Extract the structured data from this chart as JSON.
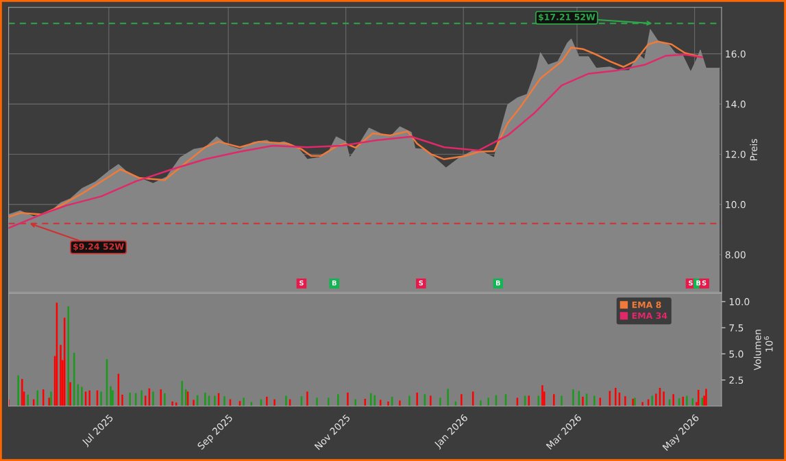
{
  "chart_data": [
    {
      "type": "area",
      "ylabel": "Preis",
      "xlim": [
        "2025-05-10",
        "2026-05-15"
      ],
      "ylim": [
        6.5,
        17.85
      ],
      "grid": true,
      "tick_labels": "y",
      "legend": "bottom right",
      "xticks": [
        {
          "value": "2025-07-01",
          "label": null
        },
        {
          "value": "2025-09-01",
          "label": null
        },
        {
          "value": "2025-11-01",
          "label": null
        },
        {
          "value": "2026-01-01",
          "label": null
        },
        {
          "value": "2026-03-01",
          "label": null
        },
        {
          "value": "2026-05-01",
          "label": null
        }
      ],
      "yticks": [
        {
          "value": 8,
          "label": "8.00"
        },
        {
          "value": 10,
          "label": "10.0"
        },
        {
          "value": 12,
          "label": "12.0"
        },
        {
          "value": 14,
          "label": "14.0"
        },
        {
          "value": 16,
          "label": "16.0"
        }
      ],
      "series": [
        {
          "type": "area",
          "color": "#858585",
          "x": [
            "2025-05-10",
            "2025-05-16",
            "2025-05-23",
            "2025-06-01",
            "2025-06-06",
            "2025-06-11",
            "2025-06-17",
            "2025-06-24",
            "2025-07-01",
            "2025-07-06",
            "2025-07-10",
            "2025-07-17",
            "2025-07-24",
            "2025-07-31",
            "2025-08-07",
            "2025-08-14",
            "2025-08-20",
            "2025-08-26",
            "2025-09-01",
            "2025-09-07",
            "2025-09-14",
            "2025-09-21",
            "2025-09-24",
            "2025-09-30",
            "2025-10-07",
            "2025-10-12",
            "2025-10-18",
            "2025-10-23",
            "2025-10-27",
            "2025-11-01",
            "2025-11-03",
            "2025-11-08",
            "2025-11-13",
            "2025-11-19",
            "2025-11-24",
            "2025-11-29",
            "2025-12-05",
            "2025-12-07",
            "2025-12-12",
            "2025-12-17",
            "2025-12-23",
            "2025-12-30",
            "2026-01-06",
            "2026-01-11",
            "2026-01-17",
            "2026-01-19",
            "2026-01-24",
            "2026-01-29",
            "2026-02-03",
            "2026-02-08",
            "2026-02-10",
            "2026-02-14",
            "2026-02-19",
            "2026-02-24",
            "2026-02-26",
            "2026-03-02",
            "2026-03-07",
            "2026-03-11",
            "2026-03-18",
            "2026-03-23",
            "2026-03-28",
            "2026-04-02",
            "2026-04-05",
            "2026-04-08",
            "2026-04-12",
            "2026-04-18",
            "2026-04-21",
            "2026-04-25",
            "2026-04-29",
            "2026-05-02",
            "2026-05-04",
            "2026-05-07",
            "2026-05-14"
          ],
          "values": [
            9.6,
            9.75,
            9.52,
            9.74,
            10.07,
            10.23,
            10.64,
            10.9,
            11.33,
            11.6,
            11.33,
            11.05,
            10.84,
            11.1,
            11.87,
            12.2,
            12.28,
            12.7,
            12.34,
            12.2,
            12.48,
            12.56,
            12.42,
            12.5,
            12.28,
            11.8,
            11.87,
            12.1,
            12.7,
            12.5,
            11.87,
            12.42,
            13.05,
            12.83,
            12.7,
            13.1,
            12.88,
            12.23,
            12.2,
            11.87,
            11.46,
            11.87,
            12.15,
            12.1,
            11.87,
            12.6,
            13.98,
            14.25,
            14.39,
            15.43,
            16.05,
            15.56,
            15.7,
            16.44,
            16.6,
            15.89,
            15.89,
            15.43,
            15.48,
            15.34,
            15.34,
            15.97,
            15.78,
            16.98,
            16.52,
            16.33,
            16.03,
            15.92,
            15.29,
            15.78,
            16.16,
            15.43,
            15.43
          ]
        },
        {
          "type": "line",
          "name": "EMA 8",
          "color": "#f07a3a",
          "x": [
            "2025-05-10",
            "2025-05-16",
            "2025-05-27",
            "2025-06-03",
            "2025-06-17",
            "2025-07-01",
            "2025-07-07",
            "2025-07-17",
            "2025-07-30",
            "2025-08-09",
            "2025-08-20",
            "2025-08-27",
            "2025-09-07",
            "2025-09-17",
            "2025-10-02",
            "2025-10-09",
            "2025-10-14",
            "2025-10-19",
            "2025-10-27",
            "2025-11-01",
            "2025-11-06",
            "2025-11-15",
            "2025-11-24",
            "2025-12-03",
            "2025-12-08",
            "2025-12-15",
            "2025-12-22",
            "2026-01-02",
            "2026-01-09",
            "2026-01-17",
            "2026-01-24",
            "2026-01-31",
            "2026-02-10",
            "2026-02-21",
            "2026-02-26",
            "2026-03-04",
            "2026-03-11",
            "2026-03-18",
            "2026-03-25",
            "2026-03-31",
            "2026-04-07",
            "2026-04-12",
            "2026-04-19",
            "2026-04-26",
            "2026-05-05"
          ],
          "values": [
            9.5,
            9.66,
            9.6,
            9.83,
            10.43,
            11.1,
            11.4,
            11.05,
            10.97,
            11.6,
            12.28,
            12.5,
            12.28,
            12.5,
            12.42,
            12.2,
            11.93,
            11.93,
            12.31,
            12.42,
            12.26,
            12.83,
            12.75,
            12.91,
            12.42,
            12.01,
            11.8,
            11.93,
            12.1,
            12.12,
            13.24,
            13.92,
            15.02,
            15.7,
            16.25,
            16.19,
            15.97,
            15.7,
            15.48,
            15.7,
            16.38,
            16.49,
            16.38,
            16.03,
            15.86
          ]
        },
        {
          "type": "line",
          "name": "EMA 34",
          "color": "#e0286a",
          "x": [
            "2025-05-10",
            "2025-05-27",
            "2025-06-09",
            "2025-06-27",
            "2025-07-15",
            "2025-08-02",
            "2025-08-20",
            "2025-09-07",
            "2025-09-24",
            "2025-10-12",
            "2025-10-30",
            "2025-11-17",
            "2025-12-05",
            "2025-12-22",
            "2026-01-09",
            "2026-01-24",
            "2026-02-07",
            "2026-02-21",
            "2026-03-07",
            "2026-03-22",
            "2026-04-05",
            "2026-04-16",
            "2026-04-26",
            "2026-05-05"
          ],
          "values": [
            9.06,
            9.6,
            9.96,
            10.32,
            10.92,
            11.38,
            11.8,
            12.1,
            12.34,
            12.28,
            12.34,
            12.56,
            12.7,
            12.28,
            12.15,
            12.75,
            13.65,
            14.74,
            15.21,
            15.34,
            15.56,
            15.92,
            15.97,
            15.86
          ]
        },
        {
          "type": "scatter",
          "marker": "square",
          "x": [
            "2025-10-09",
            "2025-10-26",
            "2025-12-10",
            "2026-01-19",
            "2026-04-29",
            "2026-05-03",
            "2026-05-06"
          ],
          "values": [
            6.85,
            6.85,
            6.85,
            6.85,
            6.85,
            6.85,
            6.85
          ],
          "colors": [
            "#e8194a",
            "#13b552",
            "#e8194a",
            "#13b552",
            "#e8194a",
            "#13b552",
            "#e8194a"
          ],
          "value_labels": [
            "S",
            "B",
            "S",
            "B",
            "S",
            "B",
            "S"
          ]
        }
      ],
      "ref_lines": [
        {
          "axis": "y",
          "value": 17.21,
          "color": "#2ea84a",
          "line_style": "dashed"
        },
        {
          "axis": "y",
          "value": 9.24,
          "color": "#d03030",
          "line_style": "dashed"
        }
      ],
      "annotations": [
        {
          "text": "$17.21 52W",
          "x": "2026-04-09",
          "y": 17.21
        },
        {
          "text": "$9.24 52W",
          "x": "2025-05-21",
          "y": 9.24
        }
      ]
    },
    {
      "type": "bar",
      "ylabel": "Volumen",
      "annotations": [
        "10$^{6}$"
      ],
      "xlim": [
        "2025-05-10",
        "2026-05-15"
      ],
      "ylim": [
        0,
        10.8
      ],
      "grid": false,
      "xticks": [
        {
          "value": "2025-07-01",
          "label": "Jul 2025"
        },
        {
          "value": "2025-09-01",
          "label": "Sep 2025"
        },
        {
          "value": "2025-11-01",
          "label": "Nov 2025"
        },
        {
          "value": "2026-01-01",
          "label": "Jan 2026"
        },
        {
          "value": "2026-03-01",
          "label": "Mar 2026"
        },
        {
          "value": "2026-05-01",
          "label": "May 2026"
        }
      ],
      "yticks": [
        {
          "value": 2.5,
          "label": "2.5"
        },
        {
          "value": 5,
          "label": "5.0"
        },
        {
          "value": 7.5,
          "label": "7.5"
        },
        {
          "value": 10,
          "label": "10.0"
        }
      ],
      "x": [
        "2025-05-10",
        "2025-05-15",
        "2025-05-17",
        "2025-05-18",
        "2025-05-20",
        "2025-05-23",
        "2025-05-25",
        "2025-05-28",
        "2025-05-31",
        "2025-06-01",
        "2025-06-03",
        "2025-06-04",
        "2025-06-06",
        "2025-06-07",
        "2025-06-08",
        "2025-06-10",
        "2025-06-11",
        "2025-06-13",
        "2025-06-15",
        "2025-06-17",
        "2025-06-19",
        "2025-06-21",
        "2025-06-25",
        "2025-06-27",
        "2025-06-30",
        "2025-07-02",
        "2025-07-03",
        "2025-07-06",
        "2025-07-08",
        "2025-07-12",
        "2025-07-15",
        "2025-07-18",
        "2025-07-20",
        "2025-07-22",
        "2025-07-24",
        "2025-07-28",
        "2025-07-30",
        "2025-08-03",
        "2025-08-05",
        "2025-08-08",
        "2025-08-10",
        "2025-08-11",
        "2025-08-14",
        "2025-08-16",
        "2025-08-20",
        "2025-08-22",
        "2025-08-25",
        "2025-08-27",
        "2025-08-30",
        "2025-09-02",
        "2025-09-07",
        "2025-09-09",
        "2025-09-13",
        "2025-09-18",
        "2025-09-21",
        "2025-09-25",
        "2025-10-01",
        "2025-10-03",
        "2025-10-09",
        "2025-10-12",
        "2025-10-17",
        "2025-10-23",
        "2025-10-28",
        "2025-11-02",
        "2025-11-06",
        "2025-11-11",
        "2025-11-14",
        "2025-11-16",
        "2025-11-19",
        "2025-11-23",
        "2025-11-25",
        "2025-11-29",
        "2025-12-04",
        "2025-12-08",
        "2025-12-12",
        "2025-12-15",
        "2025-12-20",
        "2025-12-24",
        "2025-12-28",
        "2025-12-31",
        "2026-01-06",
        "2026-01-10",
        "2026-01-14",
        "2026-01-18",
        "2026-01-23",
        "2026-01-29",
        "2026-02-02",
        "2026-02-04",
        "2026-02-09",
        "2026-02-11",
        "2026-02-12",
        "2026-02-17",
        "2026-02-21",
        "2026-02-27",
        "2026-03-02",
        "2026-03-04",
        "2026-03-06",
        "2026-03-10",
        "2026-03-13",
        "2026-03-18",
        "2026-03-21",
        "2026-03-23",
        "2026-03-26",
        "2026-03-30",
        "2026-03-31",
        "2026-04-04",
        "2026-04-07",
        "2026-04-09",
        "2026-04-11",
        "2026-04-13",
        "2026-04-15",
        "2026-04-18",
        "2026-04-20",
        "2026-04-23",
        "2026-04-25",
        "2026-04-27",
        "2026-04-30",
        "2026-05-02",
        "2026-05-03",
        "2026-05-05",
        "2026-05-06",
        "2026-05-07"
      ],
      "values": [
        0.65,
        2.95,
        2.6,
        1.4,
        1.1,
        0.65,
        1.5,
        1.6,
        0.8,
        1.4,
        4.8,
        9.9,
        5.85,
        4.4,
        8.45,
        9.55,
        2.3,
        5.1,
        2.1,
        1.85,
        1.4,
        1.5,
        1.5,
        1.4,
        4.5,
        1.9,
        1.5,
        3.1,
        1.1,
        1.3,
        1.25,
        1.5,
        1.0,
        1.7,
        1.4,
        1.6,
        1.25,
        0.45,
        0.35,
        2.4,
        1.6,
        1.4,
        0.6,
        1.05,
        1.3,
        1.0,
        1.0,
        1.25,
        0.95,
        0.65,
        0.5,
        0.8,
        0.4,
        0.65,
        0.9,
        0.65,
        1.0,
        0.65,
        0.95,
        1.4,
        0.8,
        0.8,
        1.15,
        1.3,
        0.65,
        0.7,
        1.25,
        1.05,
        0.6,
        0.45,
        0.9,
        0.55,
        1.0,
        1.3,
        1.15,
        1.0,
        0.8,
        1.65,
        0.45,
        1.15,
        1.4,
        0.55,
        0.8,
        1.05,
        1.15,
        0.8,
        1.0,
        1.0,
        1.0,
        2.0,
        1.4,
        1.15,
        1.0,
        1.6,
        1.45,
        0.9,
        1.2,
        1.0,
        0.8,
        1.45,
        1.75,
        1.3,
        0.95,
        0.7,
        0.8,
        0.4,
        0.65,
        1.0,
        1.2,
        1.75,
        1.4,
        0.65,
        1.15,
        0.75,
        0.9,
        1.0,
        0.75,
        0.4,
        1.55,
        0.8,
        1.0,
        1.65
      ],
      "colors": [
        "#ff0000",
        "#1a9a1a",
        "#ff0000",
        "#ff0000",
        "#1a9a1a",
        "#ff0000",
        "#1a9a1a",
        "#ff0000",
        "#ff0000",
        "#1a9a1a",
        "#ff0000",
        "#ff0000",
        "#ff0000",
        "#ff0000",
        "#ff0000",
        "#1a9a1a",
        "#ff0000",
        "#1a9a1a",
        "#1a9a1a",
        "#1a9a1a",
        "#ff0000",
        "#ff0000",
        "#ff0000",
        "#1a9a1a",
        "#1a9a1a",
        "#1a9a1a",
        "#1a9a1a",
        "#ff0000",
        "#ff0000",
        "#1a9a1a",
        "#1a9a1a",
        "#1a9a1a",
        "#ff0000",
        "#ff0000",
        "#1a9a1a",
        "#ff0000",
        "#1a9a1a",
        "#ff0000",
        "#ff0000",
        "#1a9a1a",
        "#1a9a1a",
        "#ff0000",
        "#ff0000",
        "#1a9a1a",
        "#1a9a1a",
        "#1a9a1a",
        "#1a9a1a",
        "#ff0000",
        "#1a9a1a",
        "#ff0000",
        "#ff0000",
        "#1a9a1a",
        "#1a9a1a",
        "#1a9a1a",
        "#ff0000",
        "#ff0000",
        "#1a9a1a",
        "#ff0000",
        "#1a9a1a",
        "#ff0000",
        "#1a9a1a",
        "#1a9a1a",
        "#1a9a1a",
        "#ff0000",
        "#1a9a1a",
        "#ff0000",
        "#1a9a1a",
        "#1a9a1a",
        "#ff0000",
        "#ff0000",
        "#1a9a1a",
        "#ff0000",
        "#1a9a1a",
        "#ff0000",
        "#1a9a1a",
        "#ff0000",
        "#1a9a1a",
        "#1a9a1a",
        "#1a9a1a",
        "#ff0000",
        "#ff0000",
        "#1a9a1a",
        "#1a9a1a",
        "#1a9a1a",
        "#1a9a1a",
        "#ff0000",
        "#1a9a1a",
        "#ff0000",
        "#1a9a1a",
        "#ff0000",
        "#ff0000",
        "#ff0000",
        "#1a9a1a",
        "#1a9a1a",
        "#1a9a1a",
        "#ff0000",
        "#1a9a1a",
        "#1a9a1a",
        "#ff0000",
        "#ff0000",
        "#ff0000",
        "#ff0000",
        "#ff0000",
        "#ff0000",
        "#1a9a1a",
        "#ff0000",
        "#ff0000",
        "#1a9a1a",
        "#ff0000",
        "#ff0000",
        "#ff0000",
        "#1a9a1a",
        "#ff0000",
        "#1a9a1a",
        "#ff0000",
        "#1a9a1a",
        "#1a9a1a",
        "#ff0000",
        "#ff0000",
        "#1a9a1a",
        "#ff0000",
        "#ff0000"
      ]
    }
  ]
}
